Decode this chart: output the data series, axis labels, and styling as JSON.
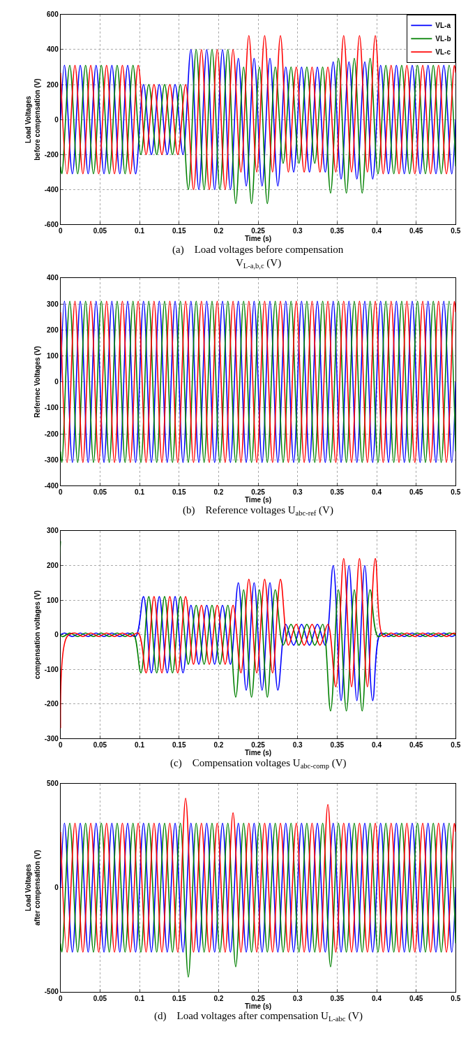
{
  "chart_data": [
    {
      "type": "line",
      "xlabel": "Time (s)",
      "ylabel": "Load Voltages\nbefore compensation (V)",
      "xlim": [
        0,
        0.5
      ],
      "xticks": [
        0,
        0.05,
        0.1,
        0.15,
        0.2,
        0.25,
        0.3,
        0.35,
        0.4,
        0.45,
        0.5
      ],
      "ylim": [
        -600,
        600
      ],
      "yticks": [
        -600,
        -400,
        -200,
        0,
        200,
        400,
        600
      ],
      "grid": true,
      "legend": "top right",
      "annotations": [
        "(a)    Load voltages before compensation",
        "V$_{L-a,b,c}$ (V)"
      ],
      "series": [
        {
          "name": "VL-a",
          "color": "#0000ff",
          "x": [
            0,
            0.005,
            0.015,
            0.025,
            0.035,
            0.045,
            0.055,
            0.065,
            0.075,
            0.085,
            0.095,
            0.105,
            0.115,
            0.125,
            0.135,
            0.145,
            0.155,
            0.165,
            0.175,
            0.185,
            0.195,
            0.205,
            0.215,
            0.225,
            0.235,
            0.245,
            0.255,
            0.265,
            0.275,
            0.285,
            0.295,
            0.305,
            0.315,
            0.325,
            0.335,
            0.345,
            0.355,
            0.365,
            0.375,
            0.385,
            0.395,
            0.405,
            0.415,
            0.425,
            0.435,
            0.445,
            0.455,
            0.465,
            0.475,
            0.485,
            0.495,
            0.5
          ],
          "values": [
            0,
            310,
            -310,
            310,
            -310,
            310,
            -310,
            310,
            -310,
            310,
            -310,
            200,
            -200,
            200,
            -200,
            200,
            -200,
            400,
            -400,
            400,
            -400,
            400,
            -400,
            350,
            -380,
            350,
            -380,
            350,
            -380,
            300,
            -300,
            300,
            -300,
            300,
            -300,
            330,
            -340,
            330,
            -340,
            330,
            -340,
            310,
            -310,
            310,
            -310,
            310,
            -310,
            310,
            -310,
            310,
            -310,
            0
          ]
        },
        {
          "name": "VL-b",
          "color": "#008000",
          "x": [
            0,
            0.0017,
            0.0117,
            0.0217,
            0.0317,
            0.0417,
            0.0517,
            0.0617,
            0.0717,
            0.0817,
            0.0917,
            0.1017,
            0.1117,
            0.1217,
            0.1317,
            0.1417,
            0.1517,
            0.1617,
            0.1717,
            0.1817,
            0.1917,
            0.2017,
            0.2117,
            0.2217,
            0.2317,
            0.2417,
            0.2517,
            0.2617,
            0.2717,
            0.2817,
            0.2917,
            0.3017,
            0.3117,
            0.3217,
            0.3317,
            0.3417,
            0.3517,
            0.3617,
            0.3717,
            0.3817,
            0.3917,
            0.4017,
            0.4117,
            0.4217,
            0.4317,
            0.4417,
            0.4517,
            0.4617,
            0.4717,
            0.4817,
            0.4917,
            0.5
          ],
          "values": [
            -268,
            -310,
            310,
            -310,
            310,
            -310,
            310,
            -310,
            310,
            -310,
            310,
            -200,
            200,
            -200,
            200,
            -200,
            200,
            -400,
            400,
            -400,
            400,
            -400,
            400,
            -480,
            300,
            -480,
            300,
            -480,
            300,
            -250,
            300,
            -250,
            300,
            -250,
            300,
            -420,
            350,
            -420,
            350,
            -420,
            350,
            -310,
            310,
            -310,
            310,
            -310,
            310,
            -310,
            310,
            -310,
            310,
            -268
          ]
        },
        {
          "name": "VL-c",
          "color": "#ff0000",
          "x": [
            0,
            0.0083,
            0.0183,
            0.0283,
            0.0383,
            0.0483,
            0.0583,
            0.0683,
            0.0783,
            0.0883,
            0.0983,
            0.1083,
            0.1183,
            0.1283,
            0.1383,
            0.1483,
            0.1583,
            0.1683,
            0.1783,
            0.1883,
            0.1983,
            0.2083,
            0.2183,
            0.2283,
            0.2383,
            0.2483,
            0.2583,
            0.2683,
            0.2783,
            0.2883,
            0.2983,
            0.3083,
            0.3183,
            0.3283,
            0.3383,
            0.3483,
            0.3583,
            0.3683,
            0.3783,
            0.3883,
            0.3983,
            0.4083,
            0.4183,
            0.4283,
            0.4383,
            0.4483,
            0.4583,
            0.4683,
            0.4783,
            0.4883,
            0.4983,
            0.5
          ],
          "values": [
            268,
            -310,
            310,
            -310,
            310,
            -310,
            310,
            -310,
            310,
            -310,
            310,
            -200,
            200,
            -200,
            200,
            -200,
            200,
            -400,
            400,
            -400,
            400,
            -400,
            400,
            -300,
            480,
            -300,
            480,
            -300,
            480,
            -300,
            300,
            -300,
            300,
            -300,
            300,
            -300,
            480,
            -300,
            480,
            -300,
            480,
            -310,
            310,
            -310,
            310,
            -310,
            310,
            -310,
            310,
            -310,
            310,
            268
          ]
        }
      ]
    },
    {
      "type": "line",
      "xlabel": "Time (s)",
      "ylabel": "Refernec Voltages (V)",
      "xlim": [
        0,
        0.5
      ],
      "xticks": [
        0,
        0.05,
        0.1,
        0.15,
        0.2,
        0.25,
        0.3,
        0.35,
        0.4,
        0.45,
        0.5
      ],
      "ylim": [
        -400,
        400
      ],
      "yticks": [
        -400,
        -300,
        -200,
        -100,
        0,
        100,
        200,
        300,
        400
      ],
      "grid": true,
      "annotations": [
        "(b)    Reference voltages U$_{abc-ref}$ (V)"
      ],
      "series": [
        {
          "color": "#0000ff",
          "x": [
            0,
            0.005,
            0.015,
            0.025,
            0.035,
            0.045,
            0.055,
            0.065,
            0.075,
            0.085,
            0.095,
            0.105,
            0.115,
            0.125,
            0.135,
            0.145,
            0.155,
            0.165,
            0.175,
            0.185,
            0.195,
            0.205,
            0.215,
            0.225,
            0.235,
            0.245,
            0.255,
            0.265,
            0.275,
            0.285,
            0.295,
            0.305,
            0.315,
            0.325,
            0.335,
            0.345,
            0.355,
            0.365,
            0.375,
            0.385,
            0.395,
            0.405,
            0.415,
            0.425,
            0.435,
            0.445,
            0.455,
            0.465,
            0.475,
            0.485,
            0.495,
            0.5
          ],
          "values": [
            0,
            310,
            -310,
            310,
            -310,
            310,
            -310,
            310,
            -310,
            310,
            -310,
            310,
            -310,
            310,
            -310,
            310,
            -310,
            310,
            -310,
            310,
            -310,
            310,
            -310,
            310,
            -310,
            310,
            -310,
            310,
            -310,
            310,
            -310,
            310,
            -310,
            310,
            -310,
            310,
            -310,
            310,
            -310,
            310,
            -310,
            310,
            -310,
            310,
            -310,
            310,
            -310,
            310,
            -310,
            310,
            -310,
            0
          ]
        },
        {
          "color": "#008000",
          "x": [
            0,
            0.0017,
            0.0117,
            0.0217,
            0.0317,
            0.0417,
            0.0517,
            0.0617,
            0.0717,
            0.0817,
            0.0917,
            0.1017,
            0.1117,
            0.1217,
            0.1317,
            0.1417,
            0.1517,
            0.1617,
            0.1717,
            0.1817,
            0.1917,
            0.2017,
            0.2117,
            0.2217,
            0.2317,
            0.2417,
            0.2517,
            0.2617,
            0.2717,
            0.2817,
            0.2917,
            0.3017,
            0.3117,
            0.3217,
            0.3317,
            0.3417,
            0.3517,
            0.3617,
            0.3717,
            0.3817,
            0.3917,
            0.4017,
            0.4117,
            0.4217,
            0.4317,
            0.4417,
            0.4517,
            0.4617,
            0.4717,
            0.4817,
            0.4917,
            0.5
          ],
          "values": [
            -268,
            -310,
            310,
            -310,
            310,
            -310,
            310,
            -310,
            310,
            -310,
            310,
            -310,
            310,
            -310,
            310,
            -310,
            310,
            -310,
            310,
            -310,
            310,
            -310,
            310,
            -310,
            310,
            -310,
            310,
            -310,
            310,
            -310,
            310,
            -310,
            310,
            -310,
            310,
            -310,
            310,
            -310,
            310,
            -310,
            310,
            -310,
            310,
            -310,
            310,
            -310,
            310,
            -310,
            310,
            -310,
            310,
            -268
          ]
        },
        {
          "color": "#ff0000",
          "x": [
            0,
            0.0083,
            0.0183,
            0.0283,
            0.0383,
            0.0483,
            0.0583,
            0.0683,
            0.0783,
            0.0883,
            0.0983,
            0.1083,
            0.1183,
            0.1283,
            0.1383,
            0.1483,
            0.1583,
            0.1683,
            0.1783,
            0.1883,
            0.1983,
            0.2083,
            0.2183,
            0.2283,
            0.2383,
            0.2483,
            0.2583,
            0.2683,
            0.2783,
            0.2883,
            0.2983,
            0.3083,
            0.3183,
            0.3283,
            0.3383,
            0.3483,
            0.3583,
            0.3683,
            0.3783,
            0.3883,
            0.3983,
            0.4083,
            0.4183,
            0.4283,
            0.4383,
            0.4483,
            0.4583,
            0.4683,
            0.4783,
            0.4883,
            0.4983,
            0.5
          ],
          "values": [
            268,
            -310,
            310,
            -310,
            310,
            -310,
            310,
            -310,
            310,
            -310,
            310,
            -310,
            310,
            -310,
            310,
            -310,
            310,
            -310,
            310,
            -310,
            310,
            -310,
            310,
            -310,
            310,
            -310,
            310,
            -310,
            310,
            -310,
            310,
            -310,
            310,
            -310,
            310,
            -310,
            310,
            -310,
            310,
            -310,
            310,
            -310,
            310,
            -310,
            310,
            -310,
            310,
            -310,
            310,
            -310,
            310,
            268
          ]
        }
      ]
    },
    {
      "type": "line",
      "xlabel": "Time (s)",
      "ylabel": "compensation voltages (V)",
      "xlim": [
        0,
        0.5
      ],
      "xticks": [
        0,
        0.05,
        0.1,
        0.15,
        0.2,
        0.25,
        0.3,
        0.35,
        0.4,
        0.45,
        0.5
      ],
      "ylim": [
        -300,
        300
      ],
      "yticks": [
        -300,
        -200,
        -100,
        0,
        100,
        200,
        300
      ],
      "grid": true,
      "annotations": [
        "(c)    Compensation voltages U$_{abc-comp}$ (V)"
      ],
      "series": [
        {
          "color": "#0000ff",
          "x": [
            0,
            0.005,
            0.015,
            0.025,
            0.035,
            0.045,
            0.055,
            0.065,
            0.075,
            0.085,
            0.095,
            0.105,
            0.115,
            0.125,
            0.135,
            0.145,
            0.155,
            0.165,
            0.175,
            0.185,
            0.195,
            0.205,
            0.215,
            0.225,
            0.235,
            0.245,
            0.255,
            0.265,
            0.275,
            0.285,
            0.295,
            0.305,
            0.315,
            0.325,
            0.335,
            0.345,
            0.355,
            0.365,
            0.375,
            0.385,
            0.395,
            0.405,
            0.415,
            0.425,
            0.435,
            0.445,
            0.455,
            0.465,
            0.475,
            0.485,
            0.495,
            0.5
          ],
          "values": [
            0,
            5,
            -5,
            5,
            -5,
            5,
            -5,
            5,
            -5,
            5,
            -5,
            110,
            -110,
            110,
            -110,
            110,
            -110,
            85,
            -85,
            85,
            -85,
            85,
            -85,
            150,
            -160,
            150,
            -160,
            150,
            -160,
            30,
            -30,
            30,
            -30,
            30,
            -30,
            200,
            -190,
            200,
            -190,
            200,
            -190,
            5,
            -5,
            5,
            -5,
            5,
            -5,
            5,
            -5,
            5,
            -5,
            0
          ]
        },
        {
          "color": "#008000",
          "x": [
            0,
            0.0017,
            0.0117,
            0.0217,
            0.0317,
            0.0417,
            0.0517,
            0.0617,
            0.0717,
            0.0817,
            0.0917,
            0.1017,
            0.1117,
            0.1217,
            0.1317,
            0.1417,
            0.1517,
            0.1617,
            0.1717,
            0.1817,
            0.1917,
            0.2017,
            0.2117,
            0.2217,
            0.2317,
            0.2417,
            0.2517,
            0.2617,
            0.2717,
            0.2817,
            0.2917,
            0.3017,
            0.3117,
            0.3217,
            0.3317,
            0.3417,
            0.3517,
            0.3617,
            0.3717,
            0.3817,
            0.3917,
            0.4017,
            0.4117,
            0.4217,
            0.4317,
            0.4417,
            0.4517,
            0.4617,
            0.4717,
            0.4817,
            0.4917,
            0.5
          ],
          "values": [
            270,
            -5,
            5,
            -5,
            5,
            -5,
            5,
            -5,
            5,
            -5,
            5,
            -110,
            110,
            -110,
            110,
            -110,
            110,
            -85,
            85,
            -85,
            85,
            -85,
            85,
            -180,
            130,
            -180,
            130,
            -180,
            130,
            -30,
            30,
            -30,
            30,
            -30,
            30,
            -220,
            130,
            -220,
            130,
            -220,
            130,
            -5,
            5,
            -5,
            5,
            -5,
            5,
            -5,
            5,
            -5,
            5,
            0
          ]
        },
        {
          "color": "#ff0000",
          "x": [
            0,
            0.0083,
            0.0183,
            0.0283,
            0.0383,
            0.0483,
            0.0583,
            0.0683,
            0.0783,
            0.0883,
            0.0983,
            0.1083,
            0.1183,
            0.1283,
            0.1383,
            0.1483,
            0.1583,
            0.1683,
            0.1783,
            0.1883,
            0.1983,
            0.2083,
            0.2183,
            0.2283,
            0.2383,
            0.2483,
            0.2583,
            0.2683,
            0.2783,
            0.2883,
            0.2983,
            0.3083,
            0.3183,
            0.3283,
            0.3383,
            0.3483,
            0.3583,
            0.3683,
            0.3783,
            0.3883,
            0.3983,
            0.4083,
            0.4183,
            0.4283,
            0.4383,
            0.4483,
            0.4583,
            0.4683,
            0.4783,
            0.4883,
            0.4983,
            0.5
          ],
          "values": [
            -270,
            -5,
            5,
            -5,
            5,
            -5,
            5,
            -5,
            5,
            -5,
            5,
            -110,
            110,
            -110,
            110,
            -110,
            110,
            -85,
            85,
            -85,
            85,
            -85,
            85,
            -110,
            160,
            -110,
            160,
            -110,
            160,
            -30,
            30,
            -30,
            30,
            -30,
            30,
            -150,
            220,
            -150,
            220,
            -150,
            220,
            -5,
            5,
            -5,
            5,
            -5,
            5,
            -5,
            5,
            -5,
            5,
            0
          ]
        }
      ]
    },
    {
      "type": "line",
      "xlabel": "Time (s)",
      "ylabel": "Load Voltages\nafter compensation (V)",
      "xlim": [
        0,
        0.5
      ],
      "xticks": [
        0,
        0.05,
        0.1,
        0.15,
        0.2,
        0.25,
        0.3,
        0.35,
        0.4,
        0.45,
        0.5
      ],
      "ylim": [
        -500,
        500
      ],
      "yticks": [
        -500,
        0,
        500
      ],
      "grid": true,
      "annotations": [
        "(d)    Load voltages after compensation U$_{L-abc}$ (V)"
      ],
      "series": [
        {
          "color": "#0000ff",
          "x": [
            0,
            0.005,
            0.015,
            0.025,
            0.035,
            0.045,
            0.055,
            0.065,
            0.075,
            0.085,
            0.095,
            0.105,
            0.115,
            0.125,
            0.135,
            0.145,
            0.155,
            0.165,
            0.175,
            0.185,
            0.195,
            0.205,
            0.215,
            0.225,
            0.235,
            0.245,
            0.255,
            0.265,
            0.275,
            0.285,
            0.295,
            0.305,
            0.315,
            0.325,
            0.335,
            0.345,
            0.355,
            0.365,
            0.375,
            0.385,
            0.395,
            0.405,
            0.415,
            0.425,
            0.435,
            0.445,
            0.455,
            0.465,
            0.475,
            0.485,
            0.495,
            0.5
          ],
          "values": [
            0,
            310,
            -310,
            310,
            -310,
            310,
            -310,
            310,
            -310,
            310,
            -310,
            310,
            -310,
            310,
            -310,
            310,
            -310,
            310,
            -310,
            310,
            -310,
            310,
            -310,
            310,
            -310,
            310,
            -310,
            310,
            -310,
            310,
            -310,
            310,
            -310,
            310,
            -310,
            310,
            -310,
            310,
            -310,
            310,
            -310,
            310,
            -310,
            310,
            -310,
            310,
            -310,
            310,
            -310,
            310,
            -310,
            0
          ]
        },
        {
          "color": "#008000",
          "x": [
            0,
            0.0017,
            0.0117,
            0.0217,
            0.0317,
            0.0417,
            0.0517,
            0.0617,
            0.0717,
            0.0817,
            0.0917,
            0.1017,
            0.1117,
            0.1217,
            0.1317,
            0.1417,
            0.1517,
            0.1617,
            0.1717,
            0.1817,
            0.1917,
            0.2017,
            0.2117,
            0.2217,
            0.2317,
            0.2417,
            0.2517,
            0.2617,
            0.2717,
            0.2817,
            0.2917,
            0.3017,
            0.3117,
            0.3217,
            0.3317,
            0.3417,
            0.3517,
            0.3617,
            0.3717,
            0.3817,
            0.3917,
            0.4017,
            0.4117,
            0.4217,
            0.4317,
            0.4417,
            0.4517,
            0.4617,
            0.4717,
            0.4817,
            0.4917,
            0.5
          ],
          "values": [
            -268,
            -310,
            310,
            -310,
            310,
            -310,
            310,
            -310,
            310,
            -310,
            310,
            -310,
            310,
            -310,
            310,
            -310,
            310,
            -430,
            310,
            -310,
            310,
            -310,
            310,
            -380,
            310,
            -310,
            310,
            -310,
            310,
            -310,
            310,
            -310,
            310,
            -310,
            310,
            -380,
            310,
            -310,
            310,
            -310,
            310,
            -310,
            310,
            -310,
            310,
            -310,
            310,
            -310,
            310,
            -310,
            310,
            -268
          ]
        },
        {
          "color": "#ff0000",
          "x": [
            0,
            0.0083,
            0.0183,
            0.0283,
            0.0383,
            0.0483,
            0.0583,
            0.0683,
            0.0783,
            0.0883,
            0.0983,
            0.1083,
            0.1183,
            0.1283,
            0.1383,
            0.1483,
            0.1583,
            0.1683,
            0.1783,
            0.1883,
            0.1983,
            0.2083,
            0.2183,
            0.2283,
            0.2383,
            0.2483,
            0.2583,
            0.2683,
            0.2783,
            0.2883,
            0.2983,
            0.3083,
            0.3183,
            0.3283,
            0.3383,
            0.3483,
            0.3583,
            0.3683,
            0.3783,
            0.3883,
            0.3983,
            0.4083,
            0.4183,
            0.4283,
            0.4383,
            0.4483,
            0.4583,
            0.4683,
            0.4783,
            0.4883,
            0.4983,
            0.5
          ],
          "values": [
            268,
            -310,
            310,
            -310,
            310,
            -310,
            310,
            -310,
            310,
            -310,
            310,
            -310,
            310,
            -310,
            310,
            -310,
            430,
            -310,
            310,
            -310,
            310,
            -310,
            360,
            -310,
            310,
            -310,
            310,
            -310,
            310,
            -310,
            310,
            -310,
            310,
            -310,
            400,
            -310,
            310,
            -310,
            310,
            -310,
            310,
            -310,
            310,
            -310,
            310,
            -310,
            310,
            -310,
            310,
            -310,
            310,
            268
          ]
        }
      ]
    }
  ]
}
